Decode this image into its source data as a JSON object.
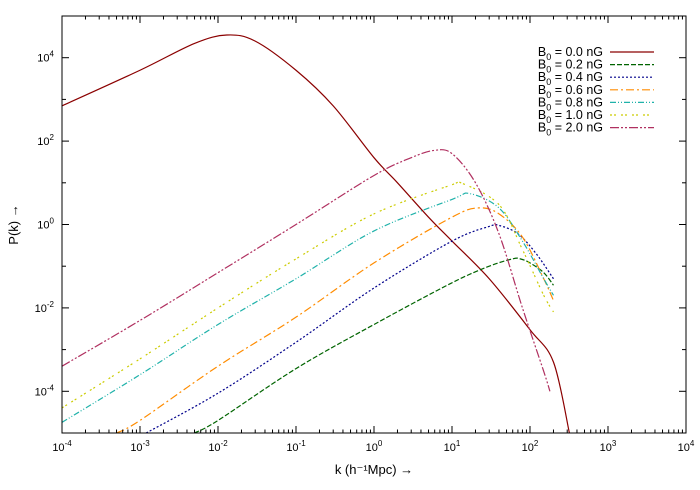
{
  "chart_data": {
    "type": "line",
    "xlabel": "k (h⁻¹Mpc) →",
    "ylabel": "P(k) →",
    "xscale": "log",
    "yscale": "log",
    "xlim": [
      0.0001,
      10000
    ],
    "ylim": [
      1e-05,
      100000
    ],
    "x_ticks": [
      {
        "base": "10",
        "exp": "-4",
        "value": 0.0001
      },
      {
        "base": "10",
        "exp": "-3",
        "value": 0.001
      },
      {
        "base": "10",
        "exp": "-2",
        "value": 0.01
      },
      {
        "base": "10",
        "exp": "-1",
        "value": 0.1
      },
      {
        "base": "10",
        "exp": "0",
        "value": 1
      },
      {
        "base": "10",
        "exp": "1",
        "value": 10
      },
      {
        "base": "10",
        "exp": "2",
        "value": 100
      },
      {
        "base": "10",
        "exp": "3",
        "value": 1000
      },
      {
        "base": "10",
        "exp": "4",
        "value": 10000
      }
    ],
    "y_ticks": [
      {
        "base": "10",
        "exp": "-4",
        "value": 0.0001
      },
      {
        "base": "10",
        "exp": "-2",
        "value": 0.01
      },
      {
        "base": "10",
        "exp": "0",
        "value": 1
      },
      {
        "base": "10",
        "exp": "2",
        "value": 100
      },
      {
        "base": "10",
        "exp": "4",
        "value": 10000
      }
    ],
    "legend": "top-right",
    "grid": false,
    "series": [
      {
        "name": "B0 = 0.0 nG",
        "label_main": "B",
        "label_sub": "0",
        "label_rest": " = 0.0 nG",
        "color": "#8b0000",
        "dash": "",
        "x": [
          0.0001,
          0.001,
          0.005,
          0.013,
          0.03,
          0.1,
          0.3,
          1,
          2,
          5,
          10,
          30,
          100,
          200,
          320
        ],
        "y": [
          700,
          5000,
          22000,
          35000,
          25000,
          5000,
          700,
          40,
          10,
          1.5,
          0.4,
          0.05,
          0.003,
          0.0005,
          1e-05
        ]
      },
      {
        "name": "B0 = 0.2 nG",
        "label_main": "B",
        "label_sub": "0",
        "label_rest": " = 0.2 nG",
        "color": "#006400",
        "dash": "5,2",
        "x": [
          0.005,
          0.01,
          0.1,
          1,
          10,
          30,
          60,
          75,
          100,
          150,
          200
        ],
        "y": [
          1e-05,
          2e-05,
          0.00035,
          0.004,
          0.04,
          0.1,
          0.15,
          0.15,
          0.12,
          0.07,
          0.035
        ]
      },
      {
        "name": "B0 = 0.4 nG",
        "label_main": "B",
        "label_sub": "0",
        "label_rest": " = 0.4 nG",
        "color": "#00008b",
        "dash": "2,2",
        "x": [
          0.0012,
          0.01,
          0.1,
          1,
          10,
          30,
          40,
          70,
          120,
          200
        ],
        "y": [
          1e-05,
          9e-05,
          0.0015,
          0.03,
          0.4,
          0.9,
          0.95,
          0.6,
          0.2,
          0.05
        ]
      },
      {
        "name": "B0 = 0.6 nG",
        "label_main": "B",
        "label_sub": "0",
        "label_rest": " = 0.6 nG",
        "color": "#ff8c00",
        "dash": "8,3,2,3",
        "x": [
          0.0005,
          0.001,
          0.01,
          0.1,
          1,
          10,
          22,
          40,
          80,
          150,
          200
        ],
        "y": [
          1e-05,
          2e-05,
          0.0004,
          0.006,
          0.12,
          1.5,
          2.5,
          1.8,
          0.5,
          0.05,
          0.015
        ]
      },
      {
        "name": "B0 = 0.8 nG",
        "label_main": "B",
        "label_sub": "0",
        "label_rest": " = 0.8 nG",
        "color": "#20b2aa",
        "dash": "6,2,1,2,1,2",
        "x": [
          0.0001,
          0.001,
          0.01,
          0.1,
          1,
          10,
          17,
          40,
          80,
          150,
          200
        ],
        "y": [
          1.8e-05,
          0.00025,
          0.004,
          0.05,
          0.7,
          4,
          5.5,
          2.5,
          0.4,
          0.05,
          0.02
        ]
      },
      {
        "name": "B0 = 1.0 nG",
        "label_main": "B",
        "label_sub": "0",
        "label_rest": " = 1.0 nG",
        "color": "#cccc00",
        "dash": "2,2,2,5",
        "x": [
          0.0001,
          0.001,
          0.01,
          0.1,
          1,
          10,
          13,
          40,
          80,
          150,
          200
        ],
        "y": [
          4e-05,
          0.0006,
          0.01,
          0.15,
          1.8,
          9,
          10,
          3,
          0.25,
          0.02,
          0.008
        ]
      },
      {
        "name": "B0 = 2.0 nG",
        "label_main": "B",
        "label_sub": "0",
        "label_rest": " = 2.0 nG",
        "color": "#b03060",
        "dash": "9,2,2,2,2,2",
        "x": [
          0.0001,
          0.001,
          0.01,
          0.1,
          1,
          3,
          6,
          10,
          20,
          40,
          80,
          150,
          180
        ],
        "y": [
          0.0004,
          0.005,
          0.07,
          1,
          15,
          40,
          60,
          50,
          10,
          0.6,
          0.01,
          0.0003,
          0.0001
        ]
      }
    ]
  }
}
